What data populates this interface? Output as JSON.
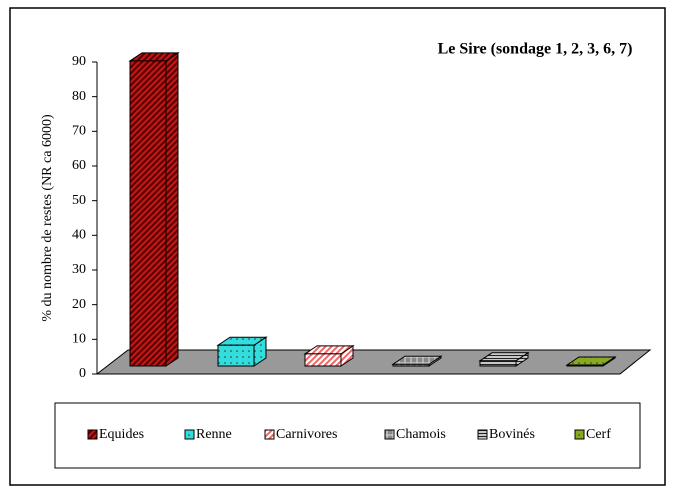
{
  "chart_data": {
    "type": "bar3d",
    "title": "Le Sire (sondage 1, 2, 3, 6, 7)",
    "y_label": "% du nombre de restes (NR ca 6000)",
    "categories": [
      "Equides",
      "Renne",
      "Carnivores",
      "Chamois",
      "Bovinés",
      "Cerf"
    ],
    "values": [
      88,
      6,
      3.5,
      0.5,
      1.5,
      0.3
    ],
    "colors": [
      "#cc1111",
      "#33dddd",
      "#ee6666",
      "#888888",
      "#222222",
      "#88aa22"
    ],
    "ylim": [
      0,
      90
    ],
    "yticks": [
      0,
      10,
      20,
      30,
      40,
      50,
      60,
      70,
      80,
      90
    ],
    "legend": "bottom"
  }
}
